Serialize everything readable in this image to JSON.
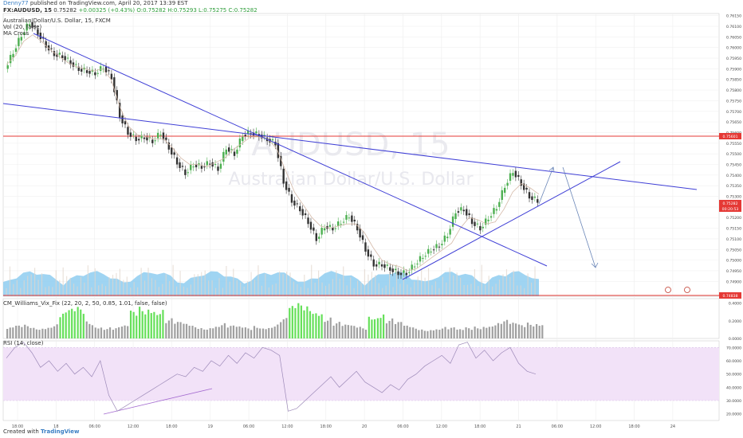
{
  "header": {
    "author": "Denny77",
    "published_text": "published on TradingView.com, April 20, 2017 13:39 EST",
    "symbol_line": "FX:AUDUSD, 15",
    "ohlc": "O:0.75282 H:0.75293 L:0.75275 C:0.75282",
    "last": "0.75282",
    "change": "+0.00325 (+0.43%)",
    "title": "Australian Dollar/U.S. Dollar, 15, FXCM",
    "study_vol": "Vol (20, false)",
    "study_ma": "MA Cross"
  },
  "watermark": {
    "symbol": "AUDUSD, 15",
    "name": "Australian Dollar/U.S. Dollar"
  },
  "panels": {
    "williams_label": "CM_Williams_Vix_Fix (22, 20, 2, 50, 0.85, 1.01, false, false)",
    "rsi_label": "RSI (14, close)"
  },
  "footer": {
    "created_with": "Created with",
    "logo": "TradingView"
  },
  "colors": {
    "up": "#4caf50",
    "down": "#333333",
    "trendline": "#3f3fd6",
    "red_line": "#e53935",
    "volume": "#8ecdf0",
    "rsi_band": "#f2e2f8",
    "rsi_line": "#9c89b8",
    "vix_green": "#66e05a",
    "vix_gray": "#a0a0a0",
    "price_tag": "#e53935"
  },
  "chart_data": {
    "type": "candlestick",
    "price_axis": {
      "min": 0.7483,
      "max": 0.7616,
      "ticks": [
        "0.76150",
        "0.76100",
        "0.76050",
        "0.76000",
        "0.75950",
        "0.75900",
        "0.75850",
        "0.75800",
        "0.75750",
        "0.75700",
        "0.75650",
        "0.75600",
        "0.75550",
        "0.75500",
        "0.75450",
        "0.75400",
        "0.75350",
        "0.75300",
        "0.75250",
        "0.75200",
        "0.75150",
        "0.75100",
        "0.75050",
        "0.75000",
        "0.74950",
        "0.74900"
      ],
      "tags": [
        "0.75601",
        "0.75282",
        "00:20:53",
        "0.74838"
      ]
    },
    "time_axis": [
      "18:00",
      "18",
      "06:00",
      "12:00",
      "18:00",
      "19",
      "06:00",
      "12:00",
      "18:00",
      "20",
      "06:00",
      "12:00",
      "18:00",
      "21",
      "06:00",
      "12:00",
      "18:00",
      "24"
    ],
    "series": [
      {
        "name": "AUDUSD, 15",
        "close_path": [
          0.759,
          0.7598,
          0.7606,
          0.7612,
          0.7607,
          0.7601,
          0.7597,
          0.7596,
          0.7593,
          0.759,
          0.7589,
          0.7588,
          0.7591,
          0.7586,
          0.7568,
          0.756,
          0.7557,
          0.7558,
          0.7556,
          0.756,
          0.7553,
          0.7546,
          0.7541,
          0.7545,
          0.7544,
          0.7546,
          0.7543,
          0.7553,
          0.755,
          0.7559,
          0.756,
          0.7559,
          0.7557,
          0.7555,
          0.7537,
          0.7528,
          0.7524,
          0.7518,
          0.751,
          0.7516,
          0.7515,
          0.7518,
          0.7521,
          0.7515,
          0.7505,
          0.7498,
          0.7498,
          0.7496,
          0.7494,
          0.7494,
          0.7498,
          0.7502,
          0.7505,
          0.7507,
          0.7512,
          0.7523,
          0.7524,
          0.7518,
          0.7515,
          0.752,
          0.7525,
          0.7535,
          0.7542,
          0.7536,
          0.753,
          0.7528
        ]
      },
      {
        "name": "MA fast",
        "close_path": [
          0.7592,
          0.7596,
          0.7603,
          0.7606,
          0.7603,
          0.7599,
          0.7596,
          0.7593,
          0.7591,
          0.759,
          0.7589,
          0.759,
          0.7585,
          0.7572,
          0.7563,
          0.7559,
          0.7558,
          0.7557,
          0.7557,
          0.7553,
          0.7548,
          0.7545,
          0.7545,
          0.7544,
          0.7546,
          0.7548,
          0.7552,
          0.7555,
          0.7558,
          0.7558,
          0.7557,
          0.7552,
          0.7542,
          0.7532,
          0.7526,
          0.752,
          0.7516,
          0.7515,
          0.7516,
          0.7517,
          0.7517,
          0.7513,
          0.7506,
          0.75,
          0.7498,
          0.7497,
          0.7495,
          0.7496,
          0.7499,
          0.7502,
          0.7505,
          0.7508,
          0.7515,
          0.752,
          0.7519,
          0.7517,
          0.7518,
          0.7524,
          0.7532,
          0.7536,
          0.7534,
          0.7531
        ]
      },
      {
        "name": "RSI (14, close)",
        "values": [
          62,
          70,
          74,
          66,
          55,
          60,
          52,
          58,
          50,
          55,
          48,
          60,
          34,
          22,
          26,
          30,
          34,
          38,
          42,
          46,
          50,
          48,
          55,
          52,
          60,
          56,
          64,
          58,
          66,
          62,
          70,
          68,
          64,
          22,
          24,
          30,
          36,
          42,
          48,
          40,
          46,
          52,
          44,
          40,
          36,
          42,
          38,
          46,
          50,
          56,
          60,
          64,
          58,
          72,
          74,
          62,
          68,
          60,
          66,
          70,
          58,
          52,
          50
        ]
      },
      {
        "name": "CM_Williams_Vix_Fix",
        "values": [
          0.12,
          0.14,
          0.15,
          0.13,
          0.14,
          0.16,
          0.28,
          0.32,
          0.34,
          0.2,
          0.15,
          0.13,
          0.12,
          0.14,
          0.3,
          0.36,
          0.38,
          0.35,
          0.22,
          0.18,
          0.16,
          0.14,
          0.13,
          0.15,
          0.17,
          0.14,
          0.13,
          0.12,
          0.15,
          0.14,
          0.16,
          0.22,
          0.35,
          0.38,
          0.37,
          0.34,
          0.25,
          0.18,
          0.15,
          0.14,
          0.13,
          0.28,
          0.3,
          0.22,
          0.18,
          0.14,
          0.12,
          0.11,
          0.12,
          0.13,
          0.12,
          0.1,
          0.12,
          0.14,
          0.16,
          0.18,
          0.2,
          0.17,
          0.15,
          0.18,
          0.19
        ]
      }
    ],
    "horizontal_levels": [
      0.75601,
      0.74838
    ],
    "rsi_axis": [
      "70.0000",
      "60.0000",
      "50.0000",
      "40.0000",
      "30.0000",
      "20.0000"
    ],
    "vix_axis": [
      "0.4000",
      "0.2000",
      "0.0000"
    ]
  }
}
